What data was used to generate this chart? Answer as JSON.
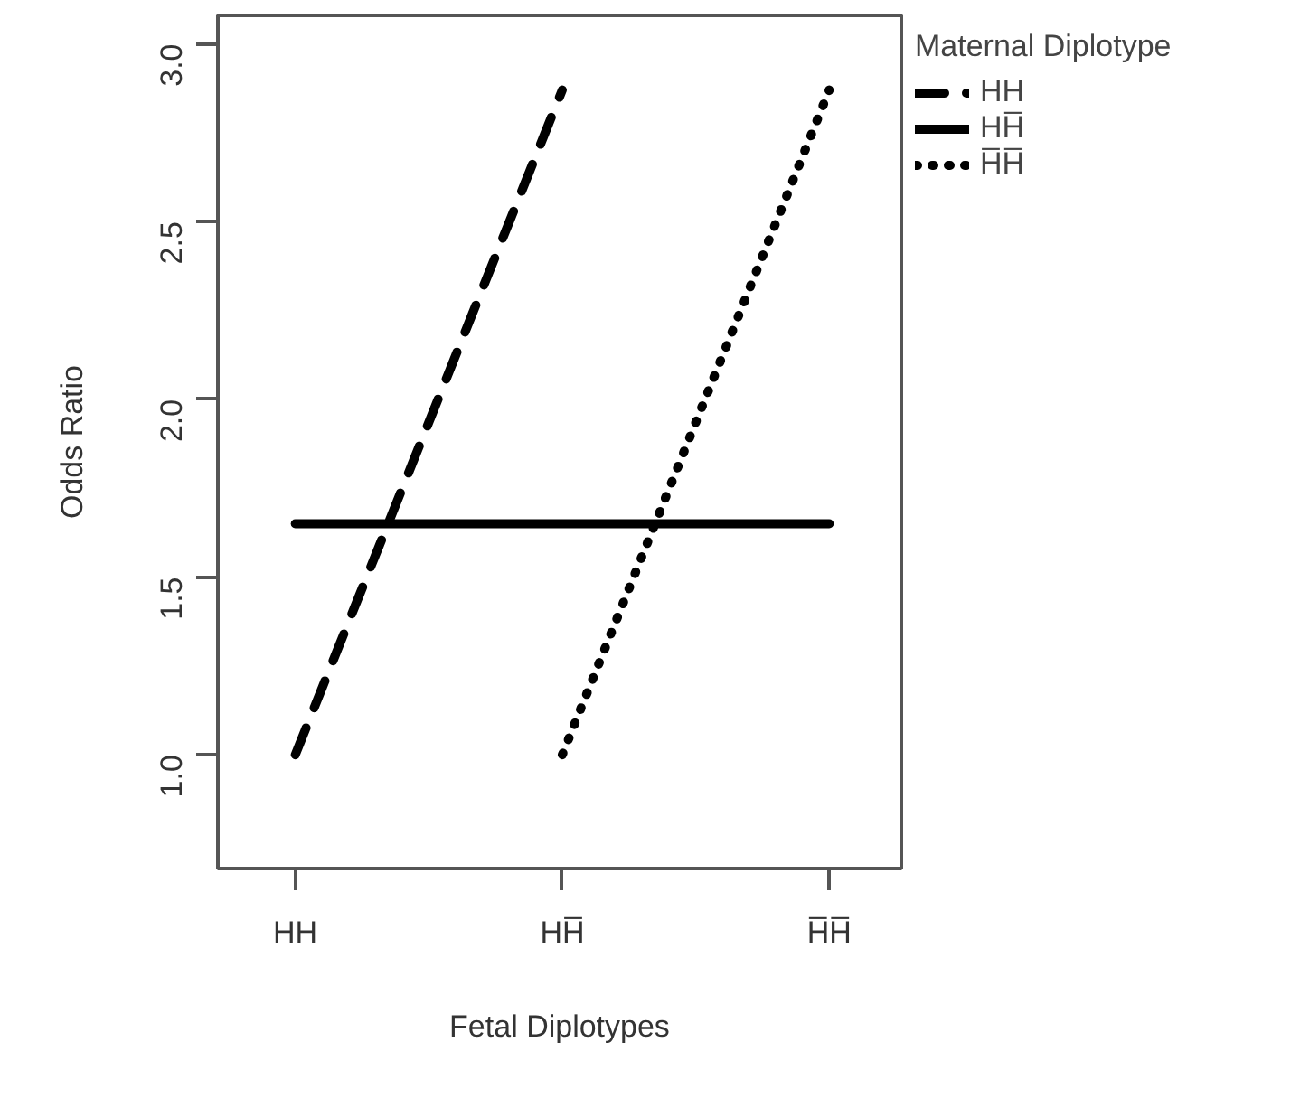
{
  "chart_data": {
    "type": "line",
    "xlabel": "Fetal Diplotypes",
    "ylabel": "Odds Ratio",
    "legend_title": "Maternal Diplotype",
    "categories": [
      "HH",
      "HH̅",
      "H̅H̅"
    ],
    "series": [
      {
        "name": "HH",
        "color": "#000000",
        "line_style": "dashed",
        "values": [
          1.0,
          2.87,
          null
        ]
      },
      {
        "name": "HH̅",
        "color": "#000000",
        "line_style": "solid",
        "values": [
          1.65,
          1.65,
          1.65
        ]
      },
      {
        "name": "H̅H̅",
        "color": "#000000",
        "line_style": "dotted",
        "values": [
          null,
          1.0,
          2.87
        ]
      }
    ],
    "ylim": [
      0.68,
      3.08
    ],
    "yticks": [
      {
        "value": 1.0,
        "label": "1.0"
      },
      1.5,
      {
        "value": 2.0,
        "label": "2.0"
      },
      2.5,
      {
        "value": 3.0,
        "label": "3.0"
      }
    ],
    "grid": false,
    "legend": "right",
    "marker": "none"
  }
}
